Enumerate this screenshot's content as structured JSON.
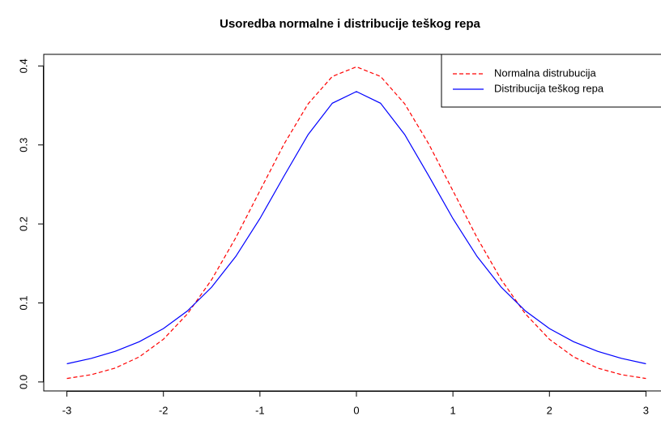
{
  "chart_data": {
    "type": "line",
    "title": "Usoredba normalne i distribucije teškog repa",
    "x": [
      -3,
      -2.75,
      -2.5,
      -2.25,
      -2,
      -1.75,
      -1.5,
      -1.25,
      -1,
      -0.75,
      -0.5,
      -0.25,
      0,
      0.25,
      0.5,
      0.75,
      1,
      1.25,
      1.5,
      1.75,
      2,
      2.25,
      2.5,
      2.75,
      3
    ],
    "series": [
      {
        "name": "Normalna distrubucija",
        "color": "#ff0000",
        "dash": true,
        "values": [
          0.0044,
          0.0091,
          0.0175,
          0.0317,
          0.054,
          0.0863,
          0.1295,
          0.1826,
          0.242,
          0.3011,
          0.3521,
          0.3867,
          0.3989,
          0.3867,
          0.3521,
          0.3011,
          0.242,
          0.1826,
          0.1295,
          0.0863,
          0.054,
          0.0317,
          0.0175,
          0.0091,
          0.0044
        ]
      },
      {
        "name": "Distribucija teškog repa",
        "color": "#0000ff",
        "dash": false,
        "values": [
          0.023,
          0.0297,
          0.0387,
          0.0509,
          0.0675,
          0.09,
          0.12,
          0.1589,
          0.2068,
          0.2607,
          0.3132,
          0.3528,
          0.3676,
          0.3528,
          0.3132,
          0.2607,
          0.2068,
          0.1589,
          0.12,
          0.09,
          0.0675,
          0.0509,
          0.0387,
          0.0297,
          0.023
        ]
      }
    ],
    "xlim": [
      -3.24,
      3.24
    ],
    "ylim": [
      -0.0114,
      0.4147
    ],
    "xticks": [
      -3,
      -2,
      -1,
      0,
      1,
      2,
      3
    ],
    "yticks": [
      {
        "value": 0,
        "label": "0.0"
      },
      0.1,
      0.2,
      0.3,
      0.4
    ],
    "legend": "top-right"
  }
}
